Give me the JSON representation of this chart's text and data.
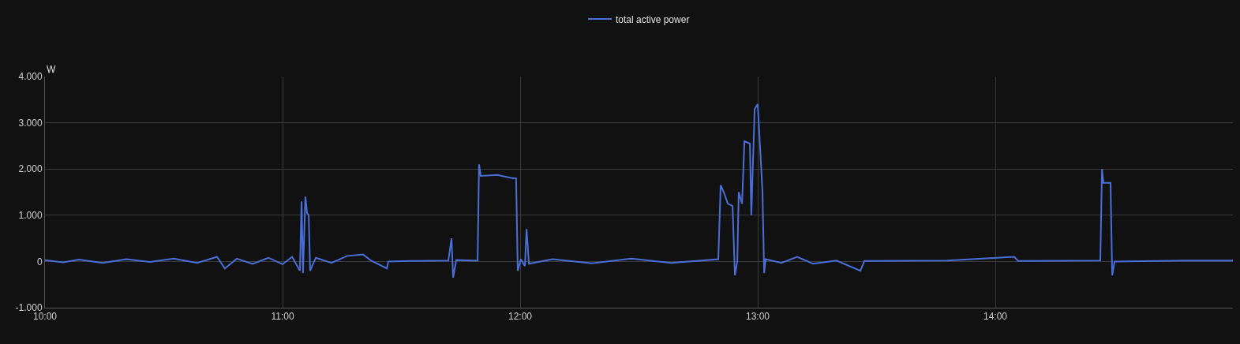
{
  "chart_data": {
    "type": "line",
    "ylabel": "W",
    "legend": "top",
    "xlim": [
      10,
      15
    ],
    "xticks": [
      {
        "value": 10,
        "label": "10:00"
      },
      {
        "value": 11,
        "label": "11:00"
      },
      {
        "value": 12,
        "label": "12:00"
      },
      {
        "value": 13,
        "label": "13:00"
      },
      {
        "value": 14,
        "label": "14:00"
      }
    ],
    "ylim": [
      -1000,
      4000
    ],
    "yticks": [
      {
        "value": -1000,
        "label": "-1.000"
      },
      {
        "value": 0,
        "label": "0"
      },
      {
        "value": 1000,
        "label": "1.000"
      },
      {
        "value": 2000,
        "label": "2.000"
      },
      {
        "value": 3000,
        "label": "3.000"
      },
      {
        "value": 4000,
        "label": "4.000"
      }
    ],
    "grid": true,
    "marker": "none",
    "line_style": "solid",
    "series": [
      {
        "name": "total active power",
        "color": "#4a6fd8",
        "x": [
          10.0,
          10.076,
          10.143,
          10.243,
          10.342,
          10.442,
          10.542,
          10.641,
          10.724,
          10.757,
          10.807,
          10.874,
          10.94,
          11.0,
          11.04,
          11.073,
          11.08,
          11.086,
          11.096,
          11.103,
          11.11,
          11.116,
          11.14,
          11.206,
          11.272,
          11.339,
          11.372,
          11.439,
          11.445,
          11.538,
          11.698,
          11.711,
          11.718,
          11.731,
          11.804,
          11.821,
          11.827,
          11.834,
          11.904,
          11.97,
          11.983,
          11.99,
          12.003,
          12.02,
          12.027,
          12.037,
          12.136,
          12.302,
          12.468,
          12.635,
          12.834,
          12.844,
          12.857,
          12.874,
          12.894,
          12.904,
          12.914,
          12.92,
          12.934,
          12.944,
          12.967,
          12.973,
          12.987,
          13.0,
          13.007,
          13.02,
          13.027,
          13.033,
          13.1,
          13.166,
          13.233,
          13.332,
          13.432,
          13.449,
          13.797,
          14.08,
          14.096,
          14.442,
          14.449,
          14.455,
          14.485,
          14.492,
          14.502,
          14.794,
          15.0
        ],
        "values": [
          30,
          -20,
          40,
          -30,
          50,
          -10,
          60,
          -30,
          100,
          -150,
          60,
          -50,
          80,
          -60,
          100,
          -200,
          1300,
          -250,
          1400,
          1050,
          1000,
          -200,
          80,
          -30,
          120,
          150,
          20,
          -150,
          0,
          10,
          20,
          500,
          -350,
          30,
          20,
          20,
          2100,
          1850,
          1870,
          1800,
          1800,
          -200,
          50,
          -100,
          700,
          -50,
          50,
          -40,
          60,
          -30,
          50,
          1650,
          1500,
          1250,
          1200,
          -300,
          0,
          1500,
          1250,
          2600,
          2550,
          1000,
          3300,
          3400,
          2750,
          1500,
          -250,
          50,
          -30,
          100,
          -50,
          20,
          -200,
          10,
          20,
          100,
          10,
          20,
          2000,
          1700,
          1700,
          -300,
          0,
          20,
          20
        ]
      }
    ]
  }
}
